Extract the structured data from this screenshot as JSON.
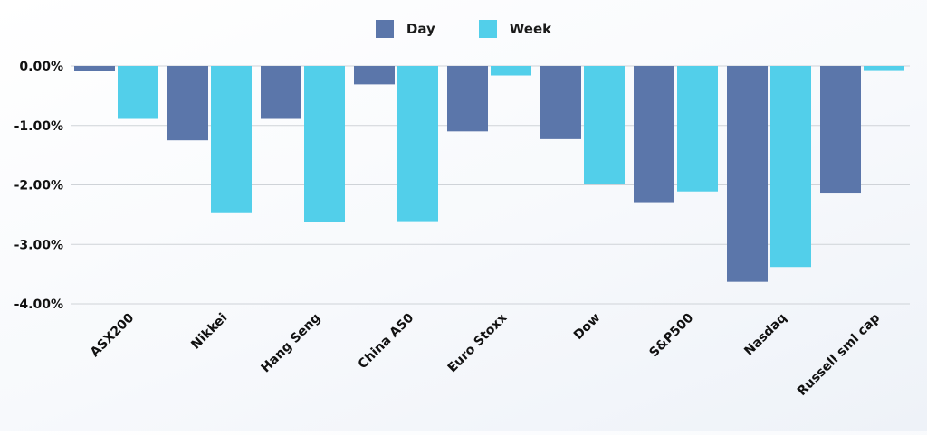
{
  "chart_data": {
    "type": "bar",
    "categories": [
      "ASX200",
      "Nikkei",
      "Hang Seng",
      "China A50",
      "Euro Stoxx",
      "Dow",
      "S&P500",
      "Nasdaq",
      "Russell sml cap"
    ],
    "series": [
      {
        "name": "Day",
        "values": [
          -0.08,
          -1.25,
          -0.89,
          -0.31,
          -1.1,
          -1.23,
          -2.29,
          -3.63,
          -2.13
        ],
        "color": "#5b76aa"
      },
      {
        "name": "Week",
        "values": [
          -0.89,
          -2.46,
          -2.62,
          -2.61,
          -0.16,
          -1.98,
          -2.11,
          -3.38,
          -0.07
        ],
        "color": "#52cfea"
      }
    ],
    "ylim": [
      -4,
      0
    ],
    "yticks": [
      0,
      -1,
      -2,
      -3,
      -4
    ],
    "ytick_labels": [
      "0.00%",
      "-1.00%",
      "-2.00%",
      "-3.00%",
      "-4.00%"
    ],
    "grid": true,
    "legend_position": "top-center"
  }
}
